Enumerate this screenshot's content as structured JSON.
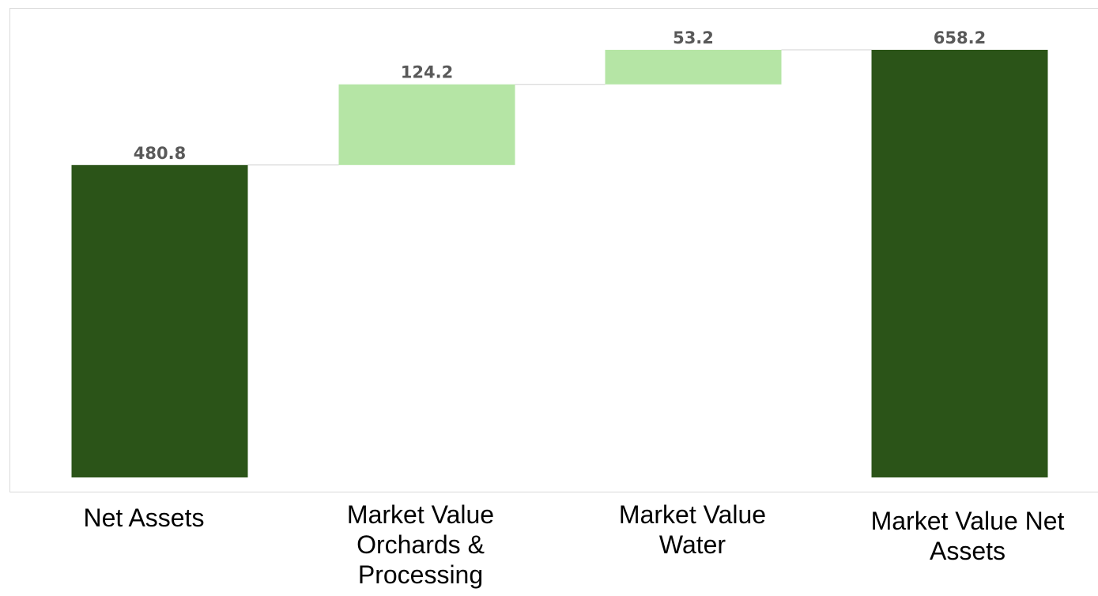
{
  "chart_data": {
    "type": "waterfall",
    "categories": [
      "Net Assets",
      "Market Value Orchards & Processing",
      "Market Value Water",
      "Market Value Net Assets"
    ],
    "values": [
      480.8,
      124.2,
      53.2,
      658.2
    ],
    "measure": [
      "total",
      "relative",
      "relative",
      "total"
    ],
    "colors": [
      "#2b5418",
      "#b5e5a5",
      "#b5e5a5",
      "#2b5418"
    ]
  }
}
